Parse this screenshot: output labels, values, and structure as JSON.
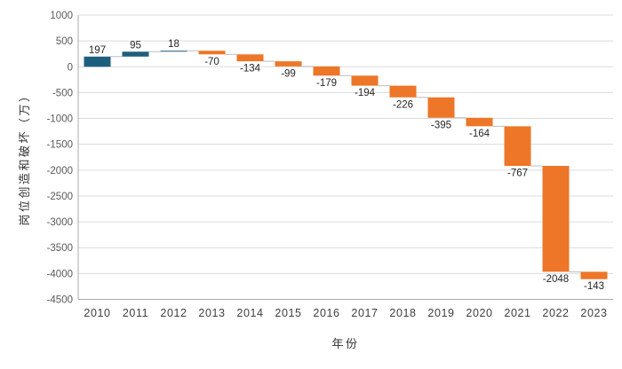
{
  "chart_data": {
    "type": "bar",
    "subtype": "waterfall",
    "title": "",
    "xlabel": "年份",
    "ylabel": "岗位创造和破坏（万）",
    "categories": [
      "2010",
      "2011",
      "2012",
      "2013",
      "2014",
      "2015",
      "2016",
      "2017",
      "2018",
      "2019",
      "2020",
      "2021",
      "2022",
      "2023"
    ],
    "values": [
      197,
      95,
      18,
      -70,
      -134,
      -99,
      -179,
      -194,
      -226,
      -395,
      -164,
      -767,
      -2048,
      -143
    ],
    "bar_labels": [
      "197",
      "95",
      "18",
      "-70",
      "-134",
      "-99",
      "-179",
      "-194",
      "-226",
      "-395",
      "-164",
      "-767",
      "-2048",
      "-143"
    ],
    "cumulative": [
      197,
      292,
      310,
      240,
      106,
      7,
      -172,
      -366,
      -592,
      -987,
      -1151,
      -1918,
      -3966,
      -4109
    ],
    "ylim": [
      -4500,
      1000
    ],
    "yticks": [
      1000,
      500,
      0,
      -500,
      -1000,
      -1500,
      -2000,
      -2500,
      -3000,
      -3500,
      -4000,
      -4500
    ],
    "yticklabels": [
      "1000",
      "500",
      "0",
      "-500",
      "-1000",
      "-1500",
      "-2000",
      "-2500",
      "-3000",
      "-3500",
      "-4000",
      "-4500"
    ],
    "grid": "horizontal",
    "legend": "none",
    "colors": {
      "positive": "#1E5F7E",
      "negative": "#ED7628",
      "gridline": "#DCDCDC",
      "axis_line": "#ABABAB",
      "connector": "#BDBDBD",
      "background": "#FFFFFF"
    }
  }
}
